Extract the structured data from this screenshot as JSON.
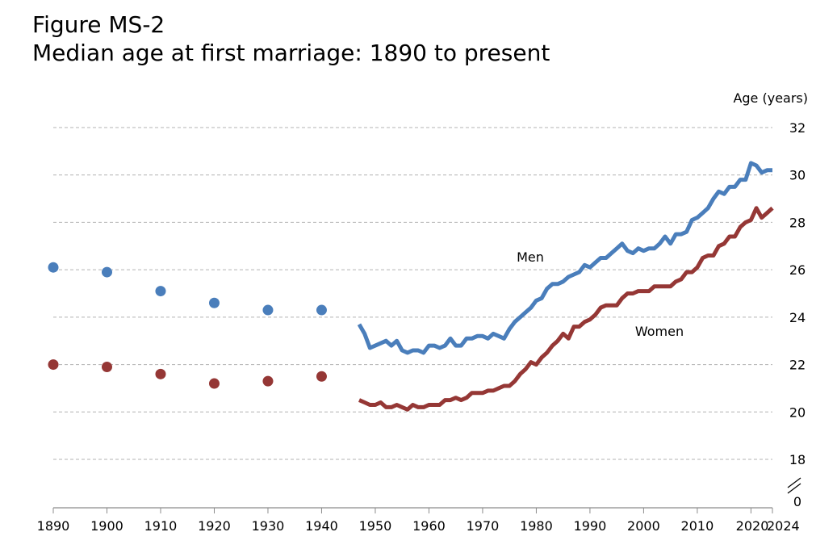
{
  "figure_label": "Figure MS-2",
  "title": "Median age at first marriage: 1890 to present",
  "chart_data": {
    "type": "line",
    "title": "Median age at first marriage: 1890 to present",
    "ylabel": "Age (years)",
    "xlabel": "",
    "x_ticks": [
      1890,
      1900,
      1910,
      1920,
      1930,
      1940,
      1950,
      1960,
      1970,
      1980,
      1990,
      2000,
      2010,
      2020,
      2024
    ],
    "y_ticks": [
      0,
      18,
      20,
      22,
      24,
      26,
      28,
      30,
      32
    ],
    "y_axis_break": "between 0 and 18",
    "xlim": [
      1890,
      2024
    ],
    "ylim": [
      18,
      32
    ],
    "grid": "horizontal dashed",
    "colors": {
      "men": "#4a7ebb",
      "women": "#953735"
    },
    "series": [
      {
        "name": "Men",
        "label_position": "above line near 1975",
        "points_decennial": [
          [
            1890,
            26.1
          ],
          [
            1900,
            25.9
          ],
          [
            1910,
            25.1
          ],
          [
            1920,
            24.6
          ],
          [
            1930,
            24.3
          ],
          [
            1940,
            24.3
          ]
        ],
        "line": [
          [
            1947,
            23.7
          ],
          [
            1948,
            23.3
          ],
          [
            1949,
            22.7
          ],
          [
            1950,
            22.8
          ],
          [
            1951,
            22.9
          ],
          [
            1952,
            23.0
          ],
          [
            1953,
            22.8
          ],
          [
            1954,
            23.0
          ],
          [
            1955,
            22.6
          ],
          [
            1956,
            22.5
          ],
          [
            1957,
            22.6
          ],
          [
            1958,
            22.6
          ],
          [
            1959,
            22.5
          ],
          [
            1960,
            22.8
          ],
          [
            1961,
            22.8
          ],
          [
            1962,
            22.7
          ],
          [
            1963,
            22.8
          ],
          [
            1964,
            23.1
          ],
          [
            1965,
            22.8
          ],
          [
            1966,
            22.8
          ],
          [
            1967,
            23.1
          ],
          [
            1968,
            23.1
          ],
          [
            1969,
            23.2
          ],
          [
            1970,
            23.2
          ],
          [
            1971,
            23.1
          ],
          [
            1972,
            23.3
          ],
          [
            1973,
            23.2
          ],
          [
            1974,
            23.1
          ],
          [
            1975,
            23.5
          ],
          [
            1976,
            23.8
          ],
          [
            1977,
            24.0
          ],
          [
            1978,
            24.2
          ],
          [
            1979,
            24.4
          ],
          [
            1980,
            24.7
          ],
          [
            1981,
            24.8
          ],
          [
            1982,
            25.2
          ],
          [
            1983,
            25.4
          ],
          [
            1984,
            25.4
          ],
          [
            1985,
            25.5
          ],
          [
            1986,
            25.7
          ],
          [
            1987,
            25.8
          ],
          [
            1988,
            25.9
          ],
          [
            1989,
            26.2
          ],
          [
            1990,
            26.1
          ],
          [
            1991,
            26.3
          ],
          [
            1992,
            26.5
          ],
          [
            1993,
            26.5
          ],
          [
            1994,
            26.7
          ],
          [
            1995,
            26.9
          ],
          [
            1996,
            27.1
          ],
          [
            1997,
            26.8
          ],
          [
            1998,
            26.7
          ],
          [
            1999,
            26.9
          ],
          [
            2000,
            26.8
          ],
          [
            2001,
            26.9
          ],
          [
            2002,
            26.9
          ],
          [
            2003,
            27.1
          ],
          [
            2004,
            27.4
          ],
          [
            2005,
            27.1
          ],
          [
            2006,
            27.5
          ],
          [
            2007,
            27.5
          ],
          [
            2008,
            27.6
          ],
          [
            2009,
            28.1
          ],
          [
            2010,
            28.2
          ],
          [
            2011,
            28.4
          ],
          [
            2012,
            28.6
          ],
          [
            2013,
            29.0
          ],
          [
            2014,
            29.3
          ],
          [
            2015,
            29.2
          ],
          [
            2016,
            29.5
          ],
          [
            2017,
            29.5
          ],
          [
            2018,
            29.8
          ],
          [
            2019,
            29.8
          ],
          [
            2020,
            30.5
          ],
          [
            2021,
            30.4
          ],
          [
            2022,
            30.1
          ],
          [
            2023,
            30.2
          ],
          [
            2024,
            30.2
          ]
        ]
      },
      {
        "name": "Women",
        "label_position": "above line near 1990",
        "points_decennial": [
          [
            1890,
            22.0
          ],
          [
            1900,
            21.9
          ],
          [
            1910,
            21.6
          ],
          [
            1920,
            21.2
          ],
          [
            1930,
            21.3
          ],
          [
            1940,
            21.5
          ]
        ],
        "line": [
          [
            1947,
            20.5
          ],
          [
            1948,
            20.4
          ],
          [
            1949,
            20.3
          ],
          [
            1950,
            20.3
          ],
          [
            1951,
            20.4
          ],
          [
            1952,
            20.2
          ],
          [
            1953,
            20.2
          ],
          [
            1954,
            20.3
          ],
          [
            1955,
            20.2
          ],
          [
            1956,
            20.1
          ],
          [
            1957,
            20.3
          ],
          [
            1958,
            20.2
          ],
          [
            1959,
            20.2
          ],
          [
            1960,
            20.3
          ],
          [
            1961,
            20.3
          ],
          [
            1962,
            20.3
          ],
          [
            1963,
            20.5
          ],
          [
            1964,
            20.5
          ],
          [
            1965,
            20.6
          ],
          [
            1966,
            20.5
          ],
          [
            1967,
            20.6
          ],
          [
            1968,
            20.8
          ],
          [
            1969,
            20.8
          ],
          [
            1970,
            20.8
          ],
          [
            1971,
            20.9
          ],
          [
            1972,
            20.9
          ],
          [
            1973,
            21.0
          ],
          [
            1974,
            21.1
          ],
          [
            1975,
            21.1
          ],
          [
            1976,
            21.3
          ],
          [
            1977,
            21.6
          ],
          [
            1978,
            21.8
          ],
          [
            1979,
            22.1
          ],
          [
            1980,
            22.0
          ],
          [
            1981,
            22.3
          ],
          [
            1982,
            22.5
          ],
          [
            1983,
            22.8
          ],
          [
            1984,
            23.0
          ],
          [
            1985,
            23.3
          ],
          [
            1986,
            23.1
          ],
          [
            1987,
            23.6
          ],
          [
            1988,
            23.6
          ],
          [
            1989,
            23.8
          ],
          [
            1990,
            23.9
          ],
          [
            1991,
            24.1
          ],
          [
            1992,
            24.4
          ],
          [
            1993,
            24.5
          ],
          [
            1994,
            24.5
          ],
          [
            1995,
            24.5
          ],
          [
            1996,
            24.8
          ],
          [
            1997,
            25.0
          ],
          [
            1998,
            25.0
          ],
          [
            1999,
            25.1
          ],
          [
            2000,
            25.1
          ],
          [
            2001,
            25.1
          ],
          [
            2002,
            25.3
          ],
          [
            2003,
            25.3
          ],
          [
            2004,
            25.3
          ],
          [
            2005,
            25.3
          ],
          [
            2006,
            25.5
          ],
          [
            2007,
            25.6
          ],
          [
            2008,
            25.9
          ],
          [
            2009,
            25.9
          ],
          [
            2010,
            26.1
          ],
          [
            2011,
            26.5
          ],
          [
            2012,
            26.6
          ],
          [
            2013,
            26.6
          ],
          [
            2014,
            27.0
          ],
          [
            2015,
            27.1
          ],
          [
            2016,
            27.4
          ],
          [
            2017,
            27.4
          ],
          [
            2018,
            27.8
          ],
          [
            2019,
            28.0
          ],
          [
            2020,
            28.1
          ],
          [
            2021,
            28.6
          ],
          [
            2022,
            28.2
          ],
          [
            2023,
            28.4
          ],
          [
            2024,
            28.6
          ]
        ]
      }
    ]
  }
}
